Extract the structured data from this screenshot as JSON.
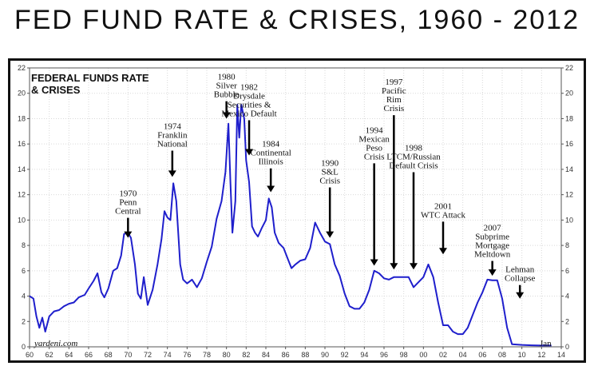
{
  "header": {
    "title": "FED FUND RATE & CRISES, 1960 - 2012"
  },
  "chart_data": {
    "type": "line",
    "title": "FEDERAL FUNDS RATE & CRISES",
    "xlabel": "",
    "ylabel": "",
    "xlim": [
      60,
      114
    ],
    "ylim": [
      0,
      22
    ],
    "yticks": [
      0,
      2,
      4,
      6,
      8,
      10,
      12,
      14,
      16,
      18,
      20,
      22
    ],
    "xtick_labels": [
      "60",
      "62",
      "64",
      "66",
      "68",
      "70",
      "72",
      "74",
      "76",
      "78",
      "80",
      "82",
      "84",
      "86",
      "88",
      "90",
      "92",
      "94",
      "96",
      "98",
      "00",
      "02",
      "04",
      "06",
      "08",
      "10",
      "12",
      "14"
    ],
    "grid": true,
    "line_color": "#1f1fcc",
    "credit": "yardeni.com",
    "end_label": "Jan",
    "series": [
      {
        "values": [
          [
            60.0,
            4.0
          ],
          [
            60.4,
            3.8
          ],
          [
            60.7,
            2.4
          ],
          [
            61.0,
            1.5
          ],
          [
            61.3,
            2.3
          ],
          [
            61.6,
            1.2
          ],
          [
            62.0,
            2.4
          ],
          [
            62.5,
            2.8
          ],
          [
            63.0,
            2.9
          ],
          [
            63.5,
            3.2
          ],
          [
            64.0,
            3.4
          ],
          [
            64.5,
            3.5
          ],
          [
            65.0,
            3.9
          ],
          [
            65.6,
            4.1
          ],
          [
            66.0,
            4.6
          ],
          [
            66.5,
            5.2
          ],
          [
            66.9,
            5.8
          ],
          [
            67.3,
            4.3
          ],
          [
            67.6,
            3.9
          ],
          [
            68.0,
            4.6
          ],
          [
            68.5,
            6.0
          ],
          [
            68.9,
            6.2
          ],
          [
            69.3,
            7.2
          ],
          [
            69.6,
            8.9
          ],
          [
            70.0,
            9.0
          ],
          [
            70.3,
            8.6
          ],
          [
            70.7,
            6.5
          ],
          [
            71.0,
            4.2
          ],
          [
            71.3,
            3.8
          ],
          [
            71.6,
            5.5
          ],
          [
            72.0,
            3.3
          ],
          [
            72.5,
            4.5
          ],
          [
            73.0,
            6.5
          ],
          [
            73.4,
            8.5
          ],
          [
            73.7,
            10.7
          ],
          [
            74.0,
            10.2
          ],
          [
            74.3,
            10.0
          ],
          [
            74.6,
            12.9
          ],
          [
            74.9,
            11.5
          ],
          [
            75.3,
            6.5
          ],
          [
            75.6,
            5.3
          ],
          [
            76.0,
            5.0
          ],
          [
            76.5,
            5.3
          ],
          [
            77.0,
            4.7
          ],
          [
            77.5,
            5.4
          ],
          [
            78.0,
            6.7
          ],
          [
            78.5,
            7.9
          ],
          [
            79.0,
            10.1
          ],
          [
            79.5,
            11.5
          ],
          [
            79.9,
            13.8
          ],
          [
            80.2,
            17.6
          ],
          [
            80.4,
            13.0
          ],
          [
            80.6,
            9.0
          ],
          [
            80.9,
            11.5
          ],
          [
            81.1,
            19.1
          ],
          [
            81.3,
            16.5
          ],
          [
            81.5,
            19.1
          ],
          [
            81.8,
            18.0
          ],
          [
            82.0,
            14.7
          ],
          [
            82.3,
            13.0
          ],
          [
            82.6,
            9.5
          ],
          [
            82.9,
            9.0
          ],
          [
            83.2,
            8.7
          ],
          [
            83.6,
            9.4
          ],
          [
            84.0,
            10.0
          ],
          [
            84.3,
            11.7
          ],
          [
            84.6,
            11.0
          ],
          [
            84.9,
            9.0
          ],
          [
            85.3,
            8.2
          ],
          [
            85.8,
            7.8
          ],
          [
            86.2,
            7.0
          ],
          [
            86.6,
            6.2
          ],
          [
            87.0,
            6.5
          ],
          [
            87.5,
            6.8
          ],
          [
            88.0,
            6.9
          ],
          [
            88.5,
            7.8
          ],
          [
            89.0,
            9.8
          ],
          [
            89.5,
            9.0
          ],
          [
            90.0,
            8.3
          ],
          [
            90.5,
            8.1
          ],
          [
            91.0,
            6.5
          ],
          [
            91.5,
            5.6
          ],
          [
            92.0,
            4.2
          ],
          [
            92.5,
            3.2
          ],
          [
            93.0,
            3.0
          ],
          [
            93.5,
            3.0
          ],
          [
            94.0,
            3.5
          ],
          [
            94.5,
            4.5
          ],
          [
            95.0,
            6.0
          ],
          [
            95.5,
            5.8
          ],
          [
            96.0,
            5.4
          ],
          [
            96.5,
            5.3
          ],
          [
            97.0,
            5.5
          ],
          [
            97.5,
            5.5
          ],
          [
            98.0,
            5.5
          ],
          [
            98.5,
            5.5
          ],
          [
            99.0,
            4.7
          ],
          [
            99.5,
            5.1
          ],
          [
            100.0,
            5.5
          ],
          [
            100.5,
            6.5
          ],
          [
            101.0,
            5.5
          ],
          [
            101.5,
            3.5
          ],
          [
            102.0,
            1.7
          ],
          [
            102.5,
            1.7
          ],
          [
            103.0,
            1.2
          ],
          [
            103.5,
            1.0
          ],
          [
            104.0,
            1.0
          ],
          [
            104.5,
            1.5
          ],
          [
            105.0,
            2.5
          ],
          [
            105.5,
            3.5
          ],
          [
            106.0,
            4.3
          ],
          [
            106.5,
            5.3
          ],
          [
            107.0,
            5.25
          ],
          [
            107.5,
            5.25
          ],
          [
            108.0,
            3.8
          ],
          [
            108.5,
            1.5
          ],
          [
            109.0,
            0.2
          ],
          [
            110.0,
            0.15
          ],
          [
            111.0,
            0.12
          ],
          [
            112.0,
            0.1
          ],
          [
            113.0,
            0.1
          ]
        ]
      }
    ],
    "annotations": [
      {
        "lines": [
          "1970",
          "Penn",
          "Central"
        ],
        "x": 70.0,
        "arrow_top": 10.3,
        "arrow_bottom": 8.6
      },
      {
        "lines": [
          "1974",
          "Franklin",
          "National"
        ],
        "x": 74.5,
        "arrow_top": 15.6,
        "arrow_bottom": 13.4
      },
      {
        "lines": [
          "1980",
          "Silver",
          "Bubble"
        ],
        "x": 80.0,
        "arrow_top": 19.5,
        "arrow_bottom": 18.0
      },
      {
        "lines": [
          "1982",
          "Drysdale",
          "Securities &",
          "Mexico Default"
        ],
        "x": 82.3,
        "arrow_top": 18.0,
        "arrow_bottom": 15.1
      },
      {
        "lines": [
          "1984",
          "Continental",
          "Illinois"
        ],
        "x": 84.5,
        "arrow_top": 14.2,
        "arrow_bottom": 12.2
      },
      {
        "lines": [
          "1990",
          "S&L",
          "Crisis"
        ],
        "x": 90.5,
        "arrow_top": 12.7,
        "arrow_bottom": 8.6
      },
      {
        "lines": [
          "1994",
          "Mexican",
          "Peso",
          "Crisis"
        ],
        "x": 95.0,
        "arrow_top": 14.6,
        "arrow_bottom": 6.4
      },
      {
        "lines": [
          "1997",
          "Pacific",
          "Rim",
          "Crisis"
        ],
        "x": 97.0,
        "arrow_top": 18.4,
        "arrow_bottom": 6.1
      },
      {
        "lines": [
          "1998",
          "LTCM/Russian",
          "Default Crisis"
        ],
        "x": 99.0,
        "arrow_top": 13.9,
        "arrow_bottom": 6.1
      },
      {
        "lines": [
          "2001",
          "WTC Attack"
        ],
        "x": 102.0,
        "arrow_top": 10.0,
        "arrow_bottom": 7.3
      },
      {
        "lines": [
          "2007",
          "Subprime",
          "Mortgage",
          "Meltdown"
        ],
        "x": 107.0,
        "arrow_top": 6.9,
        "arrow_bottom": 5.6
      },
      {
        "lines": [
          "Lehman",
          "Collapse"
        ],
        "x": 109.8,
        "arrow_top": 5.0,
        "arrow_bottom": 3.8
      }
    ]
  }
}
